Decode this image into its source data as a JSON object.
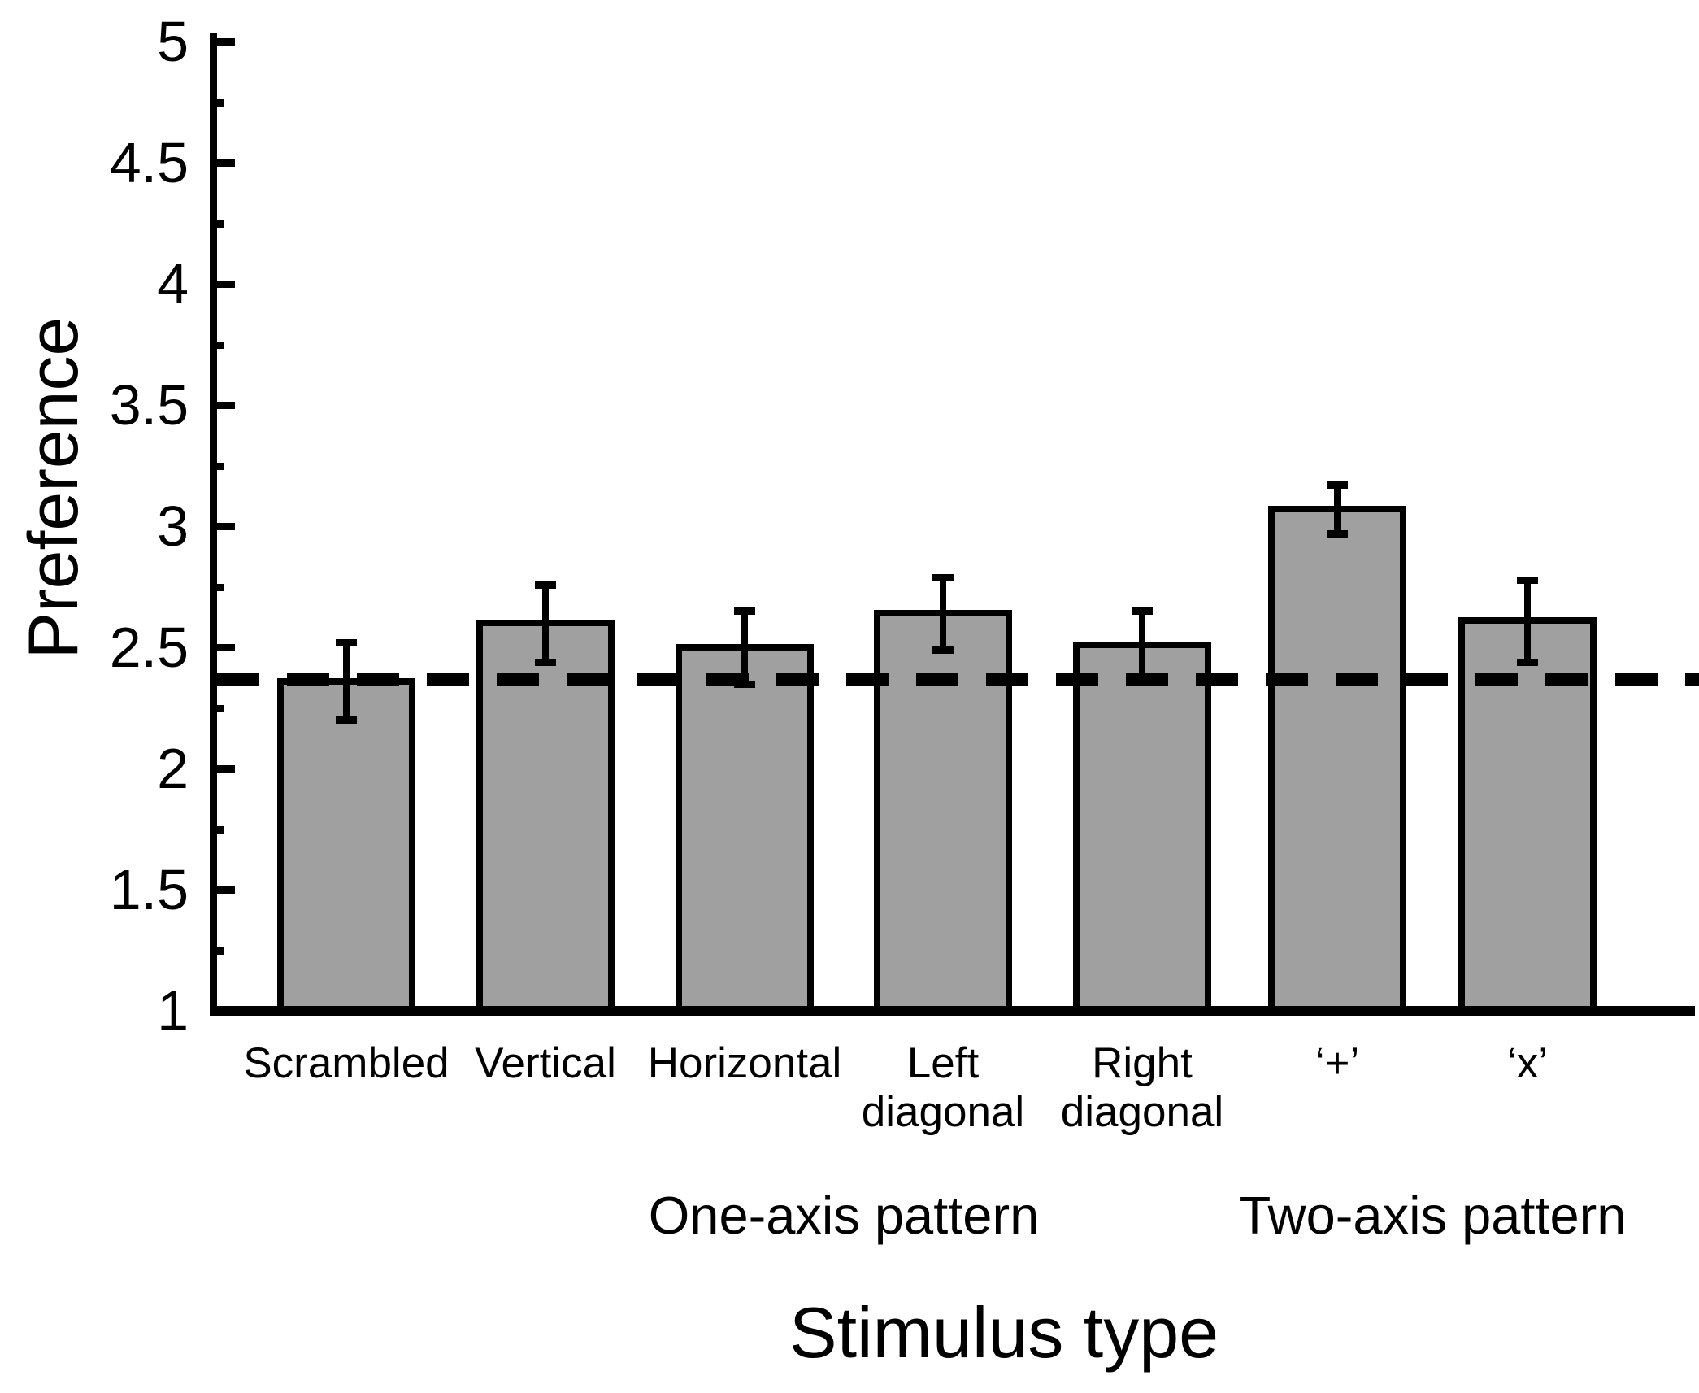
{
  "figure": {
    "background": "#ffffff",
    "line_color": "#000000"
  },
  "chart_data": {
    "type": "bar",
    "title": "",
    "xlabel": "Stimulus type",
    "ylabel": "Preference",
    "categories": [
      "Scrambled",
      "Vertical",
      "Horizontal",
      "Left\ndiagonal",
      "Right\ndiagonal",
      "‘+’",
      "‘x’"
    ],
    "values": [
      2.36,
      2.6,
      2.5,
      2.64,
      2.51,
      3.07,
      2.61
    ],
    "errors": [
      0.16,
      0.16,
      0.15,
      0.15,
      0.14,
      0.1,
      0.17
    ],
    "ylim": [
      1,
      5
    ],
    "y_major_step": 0.5,
    "y_minor_step": 0.25,
    "y_tick_labels": [
      "1",
      "1.5",
      "2",
      "2.5",
      "3",
      "3.5",
      "4",
      "4.5",
      "5"
    ],
    "reference_line": 2.37,
    "reference_line_style": "dashed",
    "bar_color": "#a0a0a0",
    "grid": false,
    "legend": null,
    "group_labels": [
      {
        "label": "One-axis pattern",
        "from": 1,
        "to": 4
      },
      {
        "label": "Two-axis pattern",
        "from": 5,
        "to": 6
      }
    ]
  }
}
